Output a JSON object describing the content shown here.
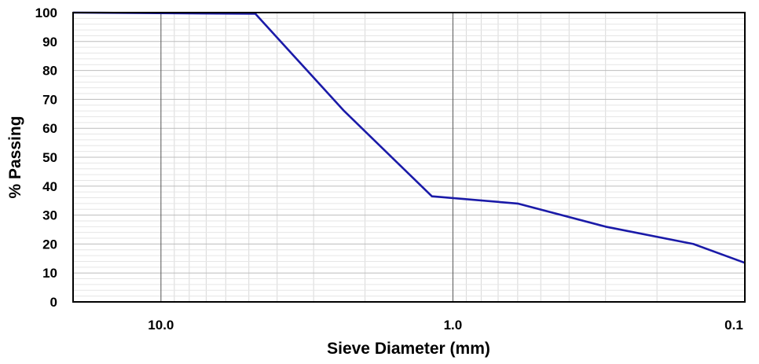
{
  "chart_data": {
    "type": "line",
    "title": "",
    "xlabel": "Sieve Diameter (mm)",
    "ylabel": "% Passing",
    "xscale": "log",
    "xaxis_reversed": true,
    "xlim": [
      20,
      0.1
    ],
    "ylim": [
      0,
      100
    ],
    "xticks": [
      {
        "value": 10,
        "label": "10.0"
      },
      {
        "value": 1,
        "label": "1.0"
      },
      {
        "value": 0.1,
        "label": "0.1"
      }
    ],
    "yticks": [
      0,
      10,
      20,
      30,
      40,
      50,
      60,
      70,
      80,
      90,
      100
    ],
    "grid": true,
    "legend": "none",
    "series": [
      {
        "color": "#1a1aa8",
        "x": [
          20,
          4.75,
          2.36,
          1.18,
          0.6,
          0.3,
          0.15,
          0.1
        ],
        "y": [
          100,
          99.6,
          66,
          36.5,
          34,
          26,
          20,
          13.5
        ]
      }
    ]
  }
}
